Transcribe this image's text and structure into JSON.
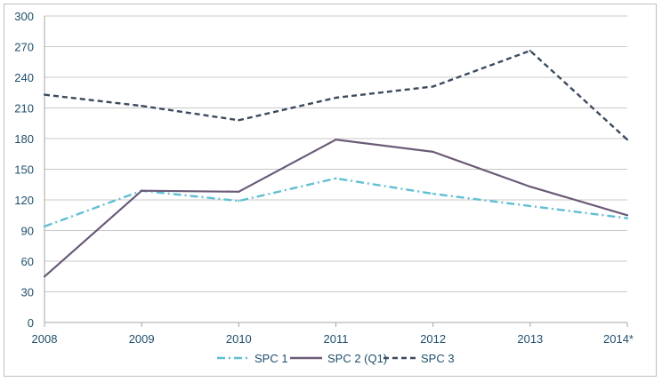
{
  "chart_data": {
    "type": "line",
    "title": "",
    "xlabel": "",
    "ylabel": "",
    "categories": [
      "2008",
      "2009",
      "2010",
      "2011",
      "2012",
      "2013",
      "2014*"
    ],
    "ylim": [
      0,
      300
    ],
    "yticks": [
      0,
      30,
      60,
      90,
      120,
      150,
      180,
      210,
      240,
      270,
      300
    ],
    "grid": "horizontal",
    "legend_position": "bottom",
    "series": [
      {
        "name": "SPC 1",
        "values": [
          94,
          129,
          119,
          141,
          126,
          114,
          102
        ],
        "color": "#5fbfd3",
        "style": "dash-dot"
      },
      {
        "name": "SPC 2 (Q1)",
        "values": [
          45,
          129,
          128,
          179,
          167,
          133,
          105
        ],
        "color": "#6b5a78",
        "style": "solid"
      },
      {
        "name": "SPC 3",
        "values": [
          223,
          212,
          198,
          220,
          231,
          266,
          179
        ],
        "color": "#3c4a5e",
        "style": "dashed"
      }
    ]
  }
}
